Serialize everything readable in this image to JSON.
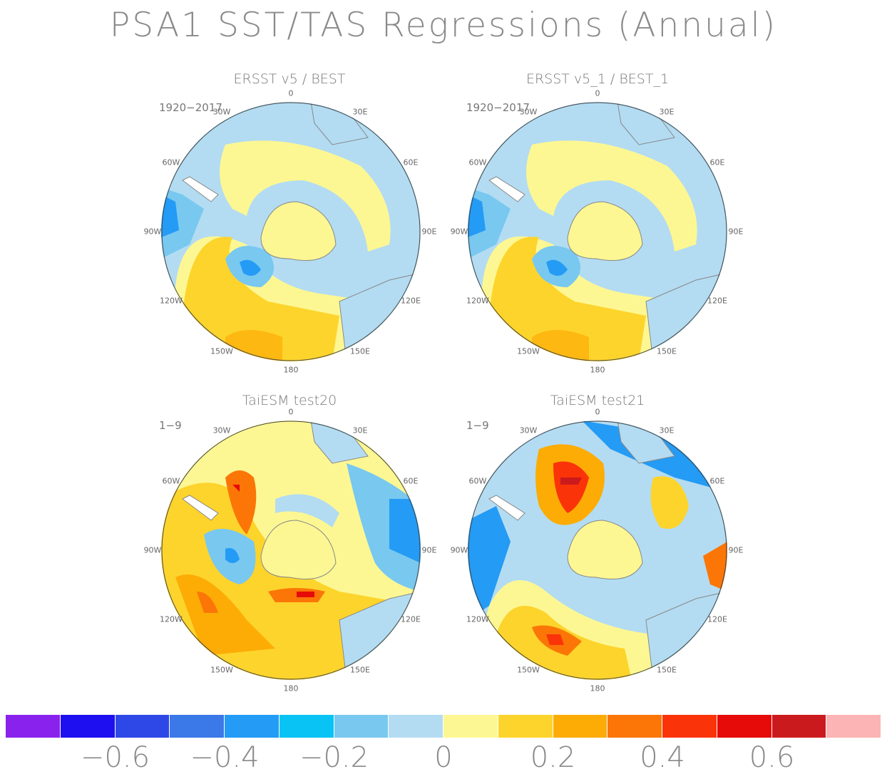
{
  "title": "PSA1 SST/TAS Regressions (Annual)",
  "panels": [
    {
      "title": "ERSST v5 / BEST",
      "period": "1920−2017"
    },
    {
      "title": "ERSST v5_1 / BEST_1",
      "period": "1920−2017"
    },
    {
      "title": "TaiESM test20",
      "period": "1−9"
    },
    {
      "title": "TaiESM test21",
      "period": "1−9"
    }
  ],
  "longitude_labels": [
    "0",
    "30E",
    "60E",
    "90E",
    "120E",
    "150E",
    "180",
    "150W",
    "120W",
    "90W",
    "60W",
    "30W"
  ],
  "colorbar": {
    "colors": [
      "#8a22ee",
      "#1e0ff0",
      "#2d48e6",
      "#3b78e8",
      "#249bf5",
      "#0ac3f5",
      "#78c8f0",
      "#b3dcf2",
      "#fdf793",
      "#fdd42c",
      "#fcac05",
      "#fb7607",
      "#fa3408",
      "#e60b09",
      "#cb1a1d",
      "#fcb4b4"
    ],
    "tick_labels": [
      "−0.6",
      "−0.4",
      "−0.2",
      "0",
      "0.2",
      "0.4",
      "0.6"
    ]
  }
}
